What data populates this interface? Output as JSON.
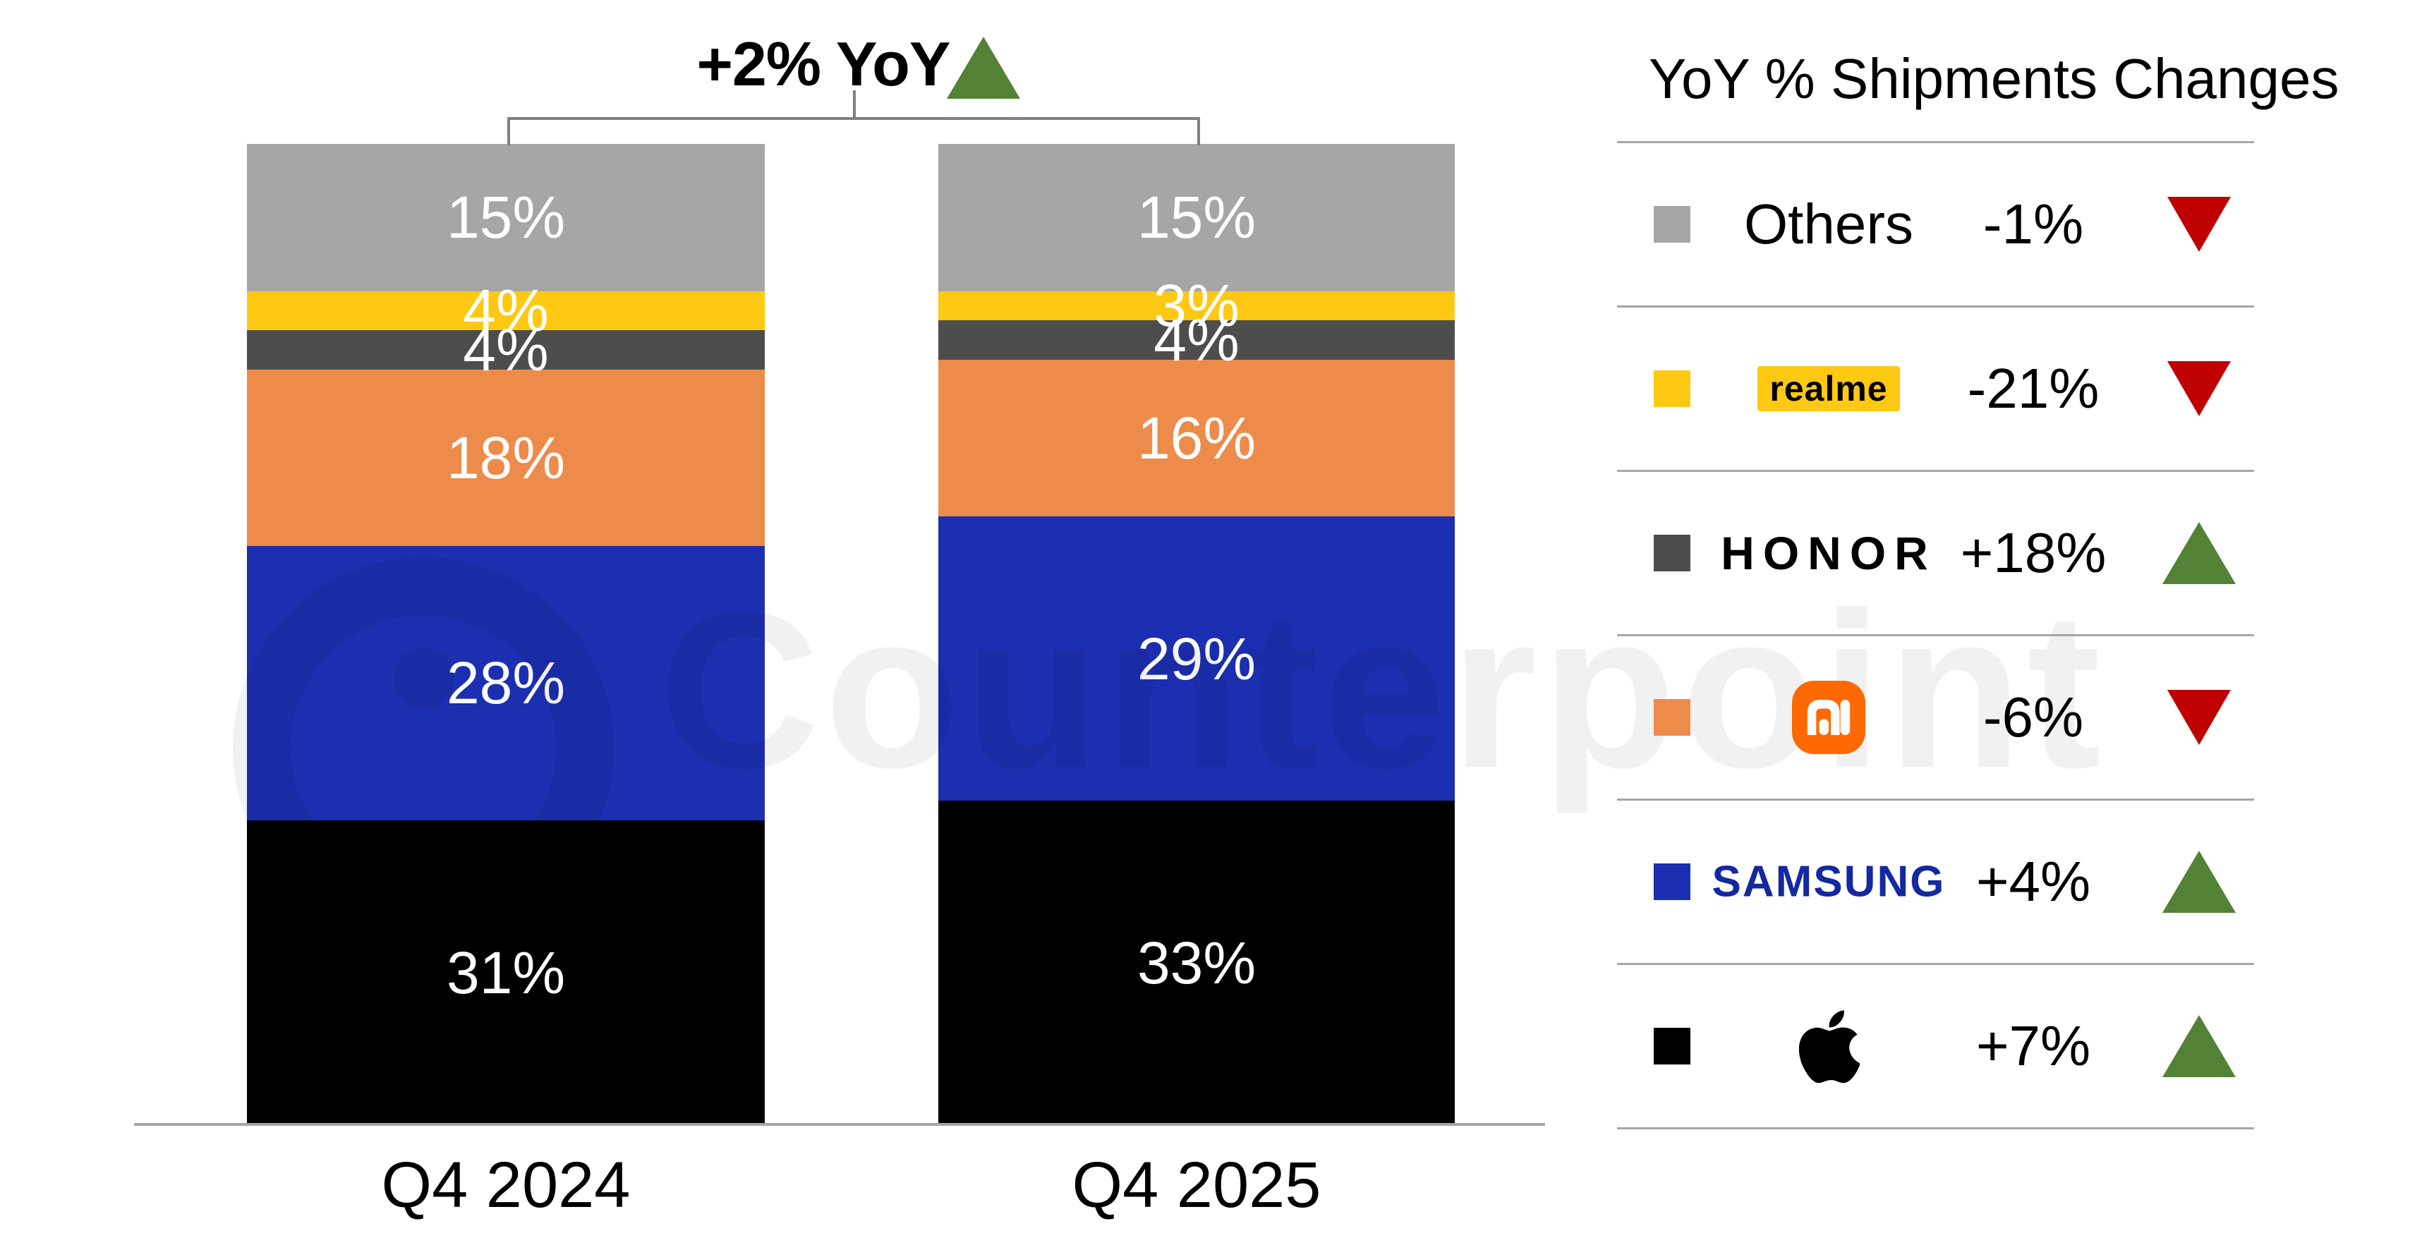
{
  "title": {
    "label": "+2% YoY",
    "direction": "up"
  },
  "watermark": {
    "text": "Counterpoint"
  },
  "chart_data": {
    "type": "bar",
    "stacked": true,
    "unit": "%",
    "title": "+2% YoY",
    "categories": [
      "Q4 2024",
      "Q4 2025"
    ],
    "series": [
      {
        "name": "Others",
        "color": "#A6A6A6",
        "values": [
          15,
          15
        ]
      },
      {
        "name": "realme",
        "color": "#FFC913",
        "values": [
          4,
          3
        ]
      },
      {
        "name": "HONOR",
        "color": "#4D4D4D",
        "values": [
          4,
          4
        ]
      },
      {
        "name": "Xiaomi",
        "color": "#ED8B4B",
        "values": [
          18,
          16
        ]
      },
      {
        "name": "Samsung",
        "color": "#1B2FB0",
        "values": [
          28,
          29
        ]
      },
      {
        "name": "Apple",
        "color": "#000000",
        "values": [
          31,
          33
        ]
      }
    ],
    "ylim": [
      0,
      100
    ],
    "value_label_format": "{v}%",
    "legend_position": "right",
    "grid": false
  },
  "legend": {
    "title": "YoY % Shipments Changes",
    "rows": [
      {
        "name": "Others",
        "logo": "none",
        "label": "Others",
        "value": "-1%",
        "direction": "down"
      },
      {
        "name": "realme",
        "logo": "realme",
        "label": "realme",
        "value": "-21%",
        "direction": "down"
      },
      {
        "name": "HONOR",
        "logo": "honor",
        "label": "HONOR",
        "value": "+18%",
        "direction": "up"
      },
      {
        "name": "Xiaomi",
        "logo": "mi",
        "label": "",
        "value": "-6%",
        "direction": "down",
        "icon": "xiaomi-mi-logo"
      },
      {
        "name": "Samsung",
        "logo": "samsung",
        "label": "SAMSUNG",
        "value": "+4%",
        "direction": "up"
      },
      {
        "name": "Apple",
        "logo": "apple",
        "label": "",
        "value": "+7%",
        "direction": "up",
        "icon": "apple-logo"
      }
    ]
  },
  "colors": {
    "up": "#538135",
    "down": "#C00000",
    "divider": "#A6A6A6",
    "bracket": "#808080",
    "mi_badge": "#FF6900",
    "samsung_text": "#1428A0",
    "realme_badge": "#FFC913"
  }
}
